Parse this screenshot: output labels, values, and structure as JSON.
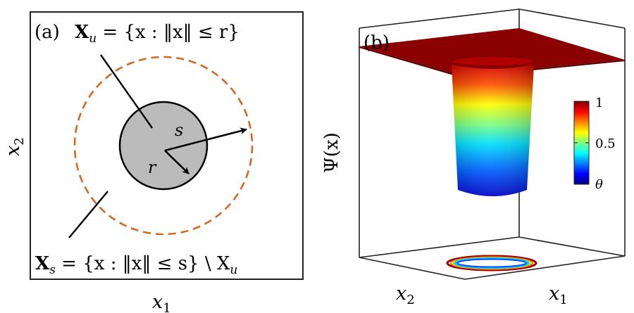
{
  "panel_a": {
    "label": "(a)",
    "xu_X": "X",
    "xu_sub": "u",
    "xu_set": " = {x : ‖x‖ ≤ r}",
    "xs_X": "X",
    "xs_sub": "s",
    "xs_set": " = {x : ‖x‖ ≤ s} \\ X",
    "xs_set_sub": "u",
    "s_label": "s",
    "r_label": "r",
    "x1_label": "x",
    "x1_sub": "1",
    "x2_label": "x",
    "x2_sub": "2",
    "colors": {
      "dashed_circle": "#d2691e",
      "disk_fill": "#bbbbbb"
    }
  },
  "panel_b": {
    "label": "(b)",
    "zlabel": "Ψ(x)",
    "x1_label": "x",
    "x1_sub": "1",
    "x2_label": "x",
    "x2_sub": "2",
    "colorbar_ticks": [
      "1",
      "0.5",
      "θ"
    ],
    "colors": {
      "plateau": "#8b0000"
    }
  }
}
